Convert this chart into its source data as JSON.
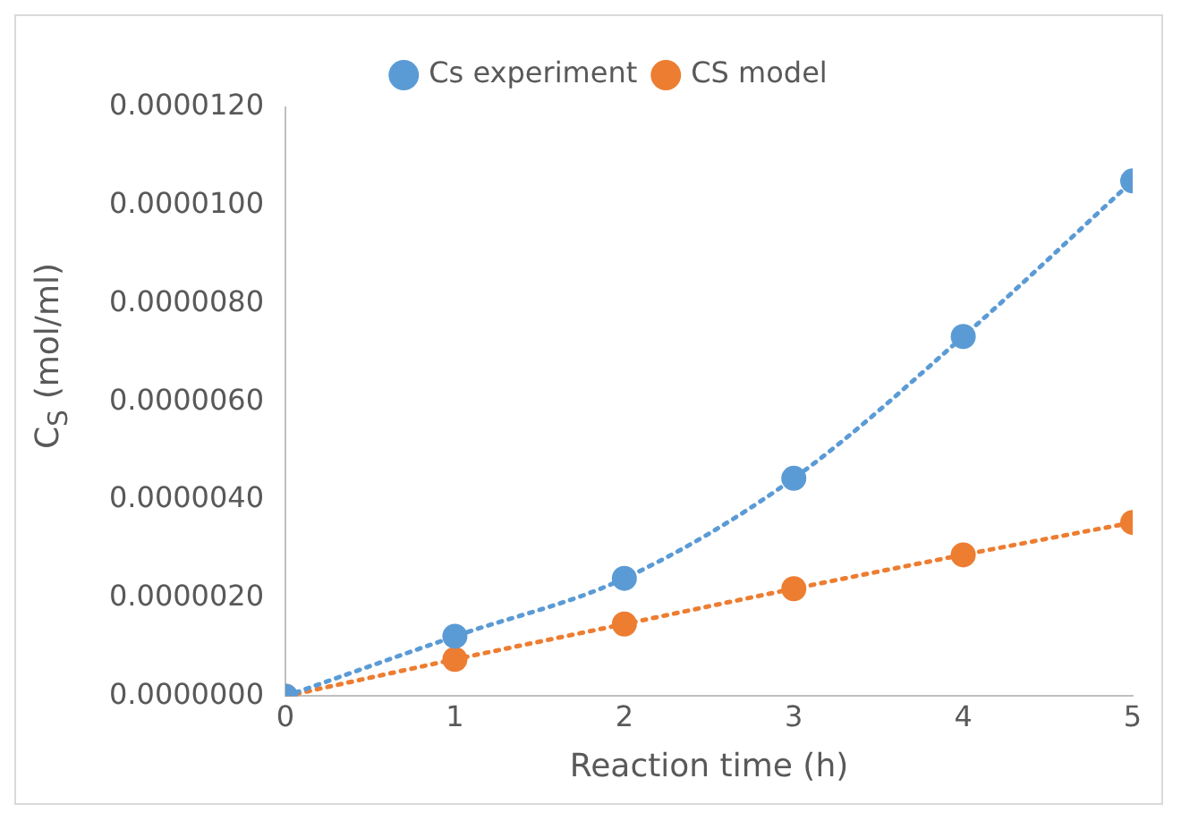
{
  "chart_data": {
    "type": "line",
    "xlabel": "Reaction time (h)",
    "ylabel": "C$_{S}$ (mol/ml)",
    "x": [
      0,
      1,
      2,
      3,
      4,
      5
    ],
    "series": [
      {
        "name": "Cs experiment",
        "color": "#5b9bd5",
        "values": [
          0,
          1.22e-06,
          2.4e-06,
          4.44e-06,
          7.33e-06,
          1.05e-05
        ]
      },
      {
        "name": "CS model",
        "color": "#ed7d31",
        "values": [
          0,
          7.5e-07,
          1.47e-06,
          2.19e-06,
          2.88e-06,
          3.54e-06
        ]
      }
    ],
    "xlim": [
      0,
      5
    ],
    "xticks": [
      0,
      1,
      2,
      3,
      4,
      5
    ],
    "ylim": [
      0,
      1.2e-05
    ],
    "yticks": [
      {
        "value": 0,
        "label": "0.0000000"
      },
      {
        "value": 2e-06,
        "label": "0.0000020"
      },
      {
        "value": 4e-06,
        "label": "0.0000040"
      },
      {
        "value": 6e-06,
        "label": "0.0000060"
      },
      {
        "value": 8e-06,
        "label": "0.0000080"
      },
      {
        "value": 1e-05,
        "label": "0.0000100"
      },
      {
        "value": 1.2e-05,
        "label": "0.0000120"
      }
    ],
    "grid": false,
    "legend": "top",
    "marker": "circle",
    "line_style": "dotted"
  }
}
